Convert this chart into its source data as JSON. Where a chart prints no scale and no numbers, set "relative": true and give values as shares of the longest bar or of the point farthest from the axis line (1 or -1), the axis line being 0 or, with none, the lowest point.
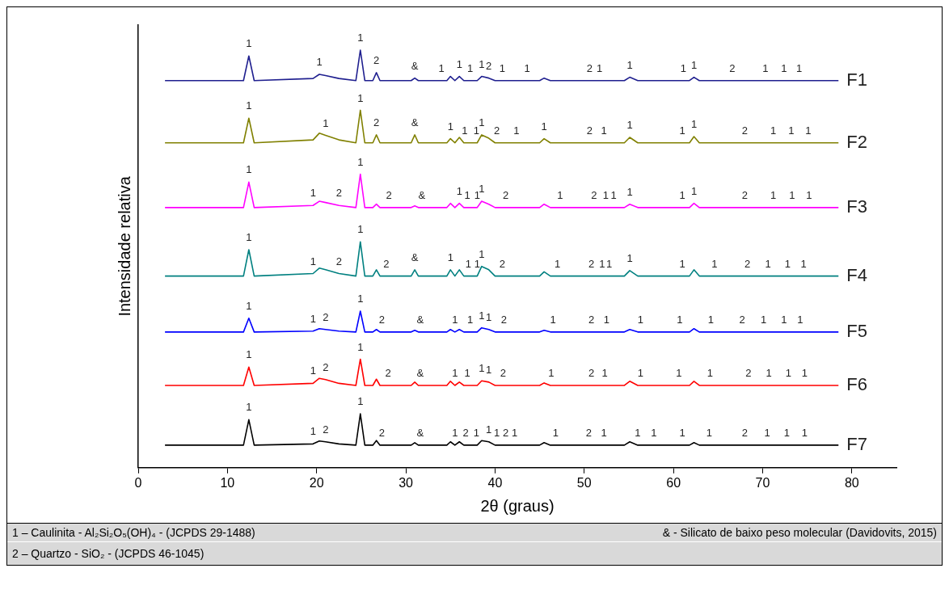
{
  "chart_data": {
    "type": "line",
    "relative": true,
    "xlabel": "2θ (graus)",
    "ylabel": "Intensidade relativa",
    "xlim": [
      0,
      85
    ],
    "xticks": [
      0,
      10,
      20,
      30,
      40,
      50,
      60,
      70,
      80
    ],
    "grid": false,
    "legend": false,
    "x": [
      3,
      11.8,
      12.4,
      13.0,
      19.6,
      20.3,
      21.0,
      22.5,
      24.4,
      24.9,
      25.4,
      26.3,
      26.7,
      27.1,
      30.6,
      31.0,
      31.4,
      34.6,
      35.0,
      35.5,
      36.0,
      36.5,
      38.0,
      38.5,
      39.3,
      40.0,
      45.0,
      45.5,
      46.2,
      54.5,
      55.1,
      56.0,
      61.8,
      62.3,
      62.9,
      78.5
    ],
    "series": [
      {
        "name": "F1",
        "color": "#1f1f8f",
        "values": [
          0.927,
          0.927,
          0.986,
          0.927,
          0.932,
          0.942,
          0.939,
          0.932,
          0.927,
          1,
          0.927,
          0.927,
          0.946,
          0.927,
          0.927,
          0.933,
          0.927,
          0.927,
          0.937,
          0.927,
          0.937,
          0.927,
          0.927,
          0.937,
          0.933,
          0.927,
          0.927,
          0.933,
          0.927,
          0.927,
          0.935,
          0.927,
          0.927,
          0.935,
          0.927,
          0.927
        ]
      },
      {
        "name": "F2",
        "color": "#808000",
        "values": [
          0.778,
          0.778,
          0.837,
          0.778,
          0.785,
          0.801,
          0.796,
          0.785,
          0.778,
          0.856,
          0.778,
          0.778,
          0.797,
          0.778,
          0.778,
          0.797,
          0.778,
          0.778,
          0.788,
          0.778,
          0.791,
          0.778,
          0.778,
          0.797,
          0.789,
          0.778,
          0.778,
          0.788,
          0.778,
          0.778,
          0.791,
          0.778,
          0.778,
          0.793,
          0.778,
          0.778
        ]
      },
      {
        "name": "F3",
        "color": "#ff00ff",
        "values": [
          0.623,
          0.623,
          0.684,
          0.623,
          0.628,
          0.638,
          0.635,
          0.628,
          0.623,
          0.703,
          0.623,
          0.623,
          0.631,
          0.623,
          0.623,
          0.627,
          0.623,
          0.623,
          0.633,
          0.623,
          0.633,
          0.623,
          0.623,
          0.638,
          0.631,
          0.623,
          0.623,
          0.631,
          0.623,
          0.623,
          0.631,
          0.623,
          0.623,
          0.633,
          0.623,
          0.623
        ]
      },
      {
        "name": "F4",
        "color": "#008080",
        "values": [
          0.459,
          0.459,
          0.522,
          0.459,
          0.465,
          0.478,
          0.474,
          0.465,
          0.459,
          0.541,
          0.459,
          0.459,
          0.474,
          0.459,
          0.459,
          0.474,
          0.459,
          0.459,
          0.474,
          0.459,
          0.474,
          0.459,
          0.459,
          0.482,
          0.474,
          0.459,
          0.459,
          0.469,
          0.459,
          0.459,
          0.472,
          0.459,
          0.459,
          0.474,
          0.459,
          0.459
        ]
      },
      {
        "name": "F5",
        "color": "#0000ff",
        "values": [
          0.325,
          0.325,
          0.358,
          0.325,
          0.327,
          0.333,
          0.331,
          0.327,
          0.325,
          0.375,
          0.325,
          0.325,
          0.331,
          0.325,
          0.325,
          0.329,
          0.325,
          0.325,
          0.331,
          0.325,
          0.331,
          0.325,
          0.325,
          0.335,
          0.331,
          0.325,
          0.325,
          0.329,
          0.325,
          0.325,
          0.331,
          0.325,
          0.325,
          0.333,
          0.325,
          0.325
        ]
      },
      {
        "name": "F6",
        "color": "#ff0000",
        "values": [
          0.197,
          0.197,
          0.241,
          0.197,
          0.202,
          0.214,
          0.211,
          0.202,
          0.197,
          0.26,
          0.197,
          0.197,
          0.212,
          0.197,
          0.197,
          0.205,
          0.197,
          0.197,
          0.207,
          0.197,
          0.205,
          0.197,
          0.197,
          0.208,
          0.205,
          0.197,
          0.197,
          0.203,
          0.197,
          0.197,
          0.207,
          0.197,
          0.197,
          0.207,
          0.197,
          0.197
        ]
      },
      {
        "name": "F7",
        "color": "#000000",
        "values": [
          0.054,
          0.054,
          0.115,
          0.054,
          0.057,
          0.064,
          0.062,
          0.057,
          0.054,
          0.129,
          0.054,
          0.054,
          0.065,
          0.054,
          0.054,
          0.06,
          0.054,
          0.054,
          0.062,
          0.054,
          0.062,
          0.054,
          0.054,
          0.065,
          0.062,
          0.054,
          0.054,
          0.06,
          0.054,
          0.054,
          0.062,
          0.054,
          0.054,
          0.06,
          0.054,
          0.054
        ]
      }
    ],
    "annotations": [
      {
        "text": "1",
        "x": 12.4,
        "y": 0.986
      },
      {
        "text": "1",
        "x": 20.3,
        "y": 0.942
      },
      {
        "text": "1",
        "x": 24.9,
        "y": 1
      },
      {
        "text": "2",
        "x": 26.7,
        "y": 0.946
      },
      {
        "text": "&",
        "x": 31.0,
        "y": 0.933
      },
      {
        "text": "1",
        "x": 34.0,
        "y": 0.927
      },
      {
        "text": "1",
        "x": 36.0,
        "y": 0.937
      },
      {
        "text": "1",
        "x": 37.2,
        "y": 0.927
      },
      {
        "text": "1",
        "x": 38.5,
        "y": 0.937
      },
      {
        "text": "2",
        "x": 39.3,
        "y": 0.933
      },
      {
        "text": "1",
        "x": 40.8,
        "y": 0.927
      },
      {
        "text": "1",
        "x": 43.6,
        "y": 0.927
      },
      {
        "text": "2",
        "x": 50.6,
        "y": 0.927
      },
      {
        "text": "1",
        "x": 51.7,
        "y": 0.927
      },
      {
        "text": "1",
        "x": 55.1,
        "y": 0.935
      },
      {
        "text": "1",
        "x": 61.1,
        "y": 0.927
      },
      {
        "text": "1",
        "x": 62.3,
        "y": 0.935
      },
      {
        "text": "2",
        "x": 66.6,
        "y": 0.927
      },
      {
        "text": "1",
        "x": 70.3,
        "y": 0.927
      },
      {
        "text": "1",
        "x": 72.4,
        "y": 0.927
      },
      {
        "text": "1",
        "x": 74.1,
        "y": 0.927
      },
      {
        "text": "1",
        "x": 12.4,
        "y": 0.837
      },
      {
        "text": "1",
        "x": 21.0,
        "y": 0.796
      },
      {
        "text": "1",
        "x": 24.9,
        "y": 0.856
      },
      {
        "text": "2",
        "x": 26.7,
        "y": 0.797
      },
      {
        "text": "&",
        "x": 31.0,
        "y": 0.797
      },
      {
        "text": "1",
        "x": 35.0,
        "y": 0.788
      },
      {
        "text": "1",
        "x": 36.6,
        "y": 0.778
      },
      {
        "text": "1",
        "x": 37.9,
        "y": 0.778
      },
      {
        "text": "1",
        "x": 38.5,
        "y": 0.797
      },
      {
        "text": "2",
        "x": 40.2,
        "y": 0.778
      },
      {
        "text": "1",
        "x": 42.4,
        "y": 0.778
      },
      {
        "text": "1",
        "x": 45.5,
        "y": 0.788
      },
      {
        "text": "2",
        "x": 50.6,
        "y": 0.778
      },
      {
        "text": "1",
        "x": 52.2,
        "y": 0.778
      },
      {
        "text": "1",
        "x": 55.1,
        "y": 0.791
      },
      {
        "text": "1",
        "x": 61.0,
        "y": 0.778
      },
      {
        "text": "1",
        "x": 62.3,
        "y": 0.793
      },
      {
        "text": "2",
        "x": 68.0,
        "y": 0.778
      },
      {
        "text": "1",
        "x": 71.2,
        "y": 0.778
      },
      {
        "text": "1",
        "x": 73.2,
        "y": 0.778
      },
      {
        "text": "1",
        "x": 75.1,
        "y": 0.778
      },
      {
        "text": "1",
        "x": 12.4,
        "y": 0.684
      },
      {
        "text": "1",
        "x": 19.6,
        "y": 0.628
      },
      {
        "text": "2",
        "x": 22.5,
        "y": 0.628
      },
      {
        "text": "1",
        "x": 24.9,
        "y": 0.703
      },
      {
        "text": "2",
        "x": 28.1,
        "y": 0.623
      },
      {
        "text": "&",
        "x": 31.8,
        "y": 0.623
      },
      {
        "text": "1",
        "x": 36.0,
        "y": 0.633
      },
      {
        "text": "1",
        "x": 36.9,
        "y": 0.623
      },
      {
        "text": "1",
        "x": 38.0,
        "y": 0.623
      },
      {
        "text": "1",
        "x": 38.5,
        "y": 0.638
      },
      {
        "text": "2",
        "x": 41.2,
        "y": 0.623
      },
      {
        "text": "1",
        "x": 47.3,
        "y": 0.623
      },
      {
        "text": "2",
        "x": 51.1,
        "y": 0.623
      },
      {
        "text": "1",
        "x": 52.4,
        "y": 0.623
      },
      {
        "text": "1",
        "x": 53.3,
        "y": 0.623
      },
      {
        "text": "1",
        "x": 55.1,
        "y": 0.631
      },
      {
        "text": "1",
        "x": 61.0,
        "y": 0.623
      },
      {
        "text": "1",
        "x": 62.3,
        "y": 0.633
      },
      {
        "text": "2",
        "x": 68.0,
        "y": 0.623
      },
      {
        "text": "1",
        "x": 71.2,
        "y": 0.623
      },
      {
        "text": "1",
        "x": 73.3,
        "y": 0.623
      },
      {
        "text": "1",
        "x": 75.2,
        "y": 0.623
      },
      {
        "text": "1",
        "x": 12.4,
        "y": 0.522
      },
      {
        "text": "1",
        "x": 19.6,
        "y": 0.465
      },
      {
        "text": "2",
        "x": 22.5,
        "y": 0.465
      },
      {
        "text": "1",
        "x": 24.9,
        "y": 0.541
      },
      {
        "text": "2",
        "x": 27.8,
        "y": 0.459
      },
      {
        "text": "&",
        "x": 31.0,
        "y": 0.474
      },
      {
        "text": "1",
        "x": 35.0,
        "y": 0.474
      },
      {
        "text": "1",
        "x": 37.0,
        "y": 0.459
      },
      {
        "text": "1",
        "x": 38.0,
        "y": 0.459
      },
      {
        "text": "1",
        "x": 38.5,
        "y": 0.482
      },
      {
        "text": "2",
        "x": 40.8,
        "y": 0.459
      },
      {
        "text": "1",
        "x": 47.0,
        "y": 0.459
      },
      {
        "text": "2",
        "x": 50.8,
        "y": 0.459
      },
      {
        "text": "1",
        "x": 52.0,
        "y": 0.459
      },
      {
        "text": "1",
        "x": 52.8,
        "y": 0.459
      },
      {
        "text": "1",
        "x": 55.1,
        "y": 0.472
      },
      {
        "text": "1",
        "x": 61.0,
        "y": 0.459
      },
      {
        "text": "1",
        "x": 64.6,
        "y": 0.459
      },
      {
        "text": "2",
        "x": 68.3,
        "y": 0.459
      },
      {
        "text": "1",
        "x": 70.6,
        "y": 0.459
      },
      {
        "text": "1",
        "x": 72.8,
        "y": 0.459
      },
      {
        "text": "1",
        "x": 74.6,
        "y": 0.459
      },
      {
        "text": "1",
        "x": 12.4,
        "y": 0.358
      },
      {
        "text": "1",
        "x": 19.6,
        "y": 0.327
      },
      {
        "text": "2",
        "x": 21.0,
        "y": 0.331
      },
      {
        "text": "1",
        "x": 24.9,
        "y": 0.375
      },
      {
        "text": "2",
        "x": 27.3,
        "y": 0.325
      },
      {
        "text": "&",
        "x": 31.6,
        "y": 0.325
      },
      {
        "text": "1",
        "x": 35.5,
        "y": 0.325
      },
      {
        "text": "1",
        "x": 37.2,
        "y": 0.325
      },
      {
        "text": "1",
        "x": 38.5,
        "y": 0.335
      },
      {
        "text": "1",
        "x": 39.3,
        "y": 0.331
      },
      {
        "text": "2",
        "x": 41.0,
        "y": 0.325
      },
      {
        "text": "1",
        "x": 46.5,
        "y": 0.325
      },
      {
        "text": "2",
        "x": 50.8,
        "y": 0.325
      },
      {
        "text": "1",
        "x": 52.5,
        "y": 0.325
      },
      {
        "text": "1",
        "x": 56.3,
        "y": 0.325
      },
      {
        "text": "1",
        "x": 60.7,
        "y": 0.325
      },
      {
        "text": "1",
        "x": 64.2,
        "y": 0.325
      },
      {
        "text": "2",
        "x": 67.7,
        "y": 0.325
      },
      {
        "text": "1",
        "x": 70.1,
        "y": 0.325
      },
      {
        "text": "1",
        "x": 72.4,
        "y": 0.325
      },
      {
        "text": "1",
        "x": 74.2,
        "y": 0.325
      },
      {
        "text": "1",
        "x": 12.4,
        "y": 0.241
      },
      {
        "text": "1",
        "x": 19.6,
        "y": 0.202
      },
      {
        "text": "2",
        "x": 21.0,
        "y": 0.211
      },
      {
        "text": "1",
        "x": 24.9,
        "y": 0.26
      },
      {
        "text": "2",
        "x": 28.0,
        "y": 0.197
      },
      {
        "text": "&",
        "x": 31.6,
        "y": 0.197
      },
      {
        "text": "1",
        "x": 35.5,
        "y": 0.197
      },
      {
        "text": "1",
        "x": 36.9,
        "y": 0.197
      },
      {
        "text": "1",
        "x": 38.5,
        "y": 0.208
      },
      {
        "text": "1",
        "x": 39.3,
        "y": 0.205
      },
      {
        "text": "2",
        "x": 40.9,
        "y": 0.197
      },
      {
        "text": "1",
        "x": 46.3,
        "y": 0.197
      },
      {
        "text": "2",
        "x": 50.8,
        "y": 0.197
      },
      {
        "text": "1",
        "x": 52.3,
        "y": 0.197
      },
      {
        "text": "1",
        "x": 56.3,
        "y": 0.197
      },
      {
        "text": "1",
        "x": 60.6,
        "y": 0.197
      },
      {
        "text": "1",
        "x": 64.1,
        "y": 0.197
      },
      {
        "text": "2",
        "x": 68.4,
        "y": 0.197
      },
      {
        "text": "1",
        "x": 70.7,
        "y": 0.197
      },
      {
        "text": "1",
        "x": 72.9,
        "y": 0.197
      },
      {
        "text": "1",
        "x": 74.7,
        "y": 0.197
      },
      {
        "text": "1",
        "x": 12.4,
        "y": 0.115
      },
      {
        "text": "1",
        "x": 19.6,
        "y": 0.057
      },
      {
        "text": "2",
        "x": 21.0,
        "y": 0.062
      },
      {
        "text": "1",
        "x": 24.9,
        "y": 0.129
      },
      {
        "text": "2",
        "x": 27.3,
        "y": 0.054
      },
      {
        "text": "&",
        "x": 31.6,
        "y": 0.054
      },
      {
        "text": "1",
        "x": 35.5,
        "y": 0.054
      },
      {
        "text": "2",
        "x": 36.7,
        "y": 0.054
      },
      {
        "text": "1",
        "x": 37.9,
        "y": 0.054
      },
      {
        "text": "1",
        "x": 39.3,
        "y": 0.062
      },
      {
        "text": "1",
        "x": 40.2,
        "y": 0.054
      },
      {
        "text": "2",
        "x": 41.2,
        "y": 0.054
      },
      {
        "text": "1",
        "x": 42.2,
        "y": 0.054
      },
      {
        "text": "1",
        "x": 46.8,
        "y": 0.054
      },
      {
        "text": "2",
        "x": 50.5,
        "y": 0.054
      },
      {
        "text": "1",
        "x": 52.2,
        "y": 0.054
      },
      {
        "text": "1",
        "x": 56.0,
        "y": 0.054
      },
      {
        "text": "1",
        "x": 57.8,
        "y": 0.054
      },
      {
        "text": "1",
        "x": 61.0,
        "y": 0.054
      },
      {
        "text": "1",
        "x": 64.0,
        "y": 0.054
      },
      {
        "text": "2",
        "x": 68.0,
        "y": 0.054
      },
      {
        "text": "1",
        "x": 70.5,
        "y": 0.054
      },
      {
        "text": "1",
        "x": 72.7,
        "y": 0.054
      },
      {
        "text": "1",
        "x": 74.7,
        "y": 0.054
      },
      "1 – Caulinita - Al₂Si₂O₅(OH)₄ - (JCPDS 29-1488)",
      "& - Silicato de baixo peso molecular (Davidovits, 2015)",
      "2 – Quartzo - SiO₂ - (JCPDS 46-1045)"
    ]
  }
}
